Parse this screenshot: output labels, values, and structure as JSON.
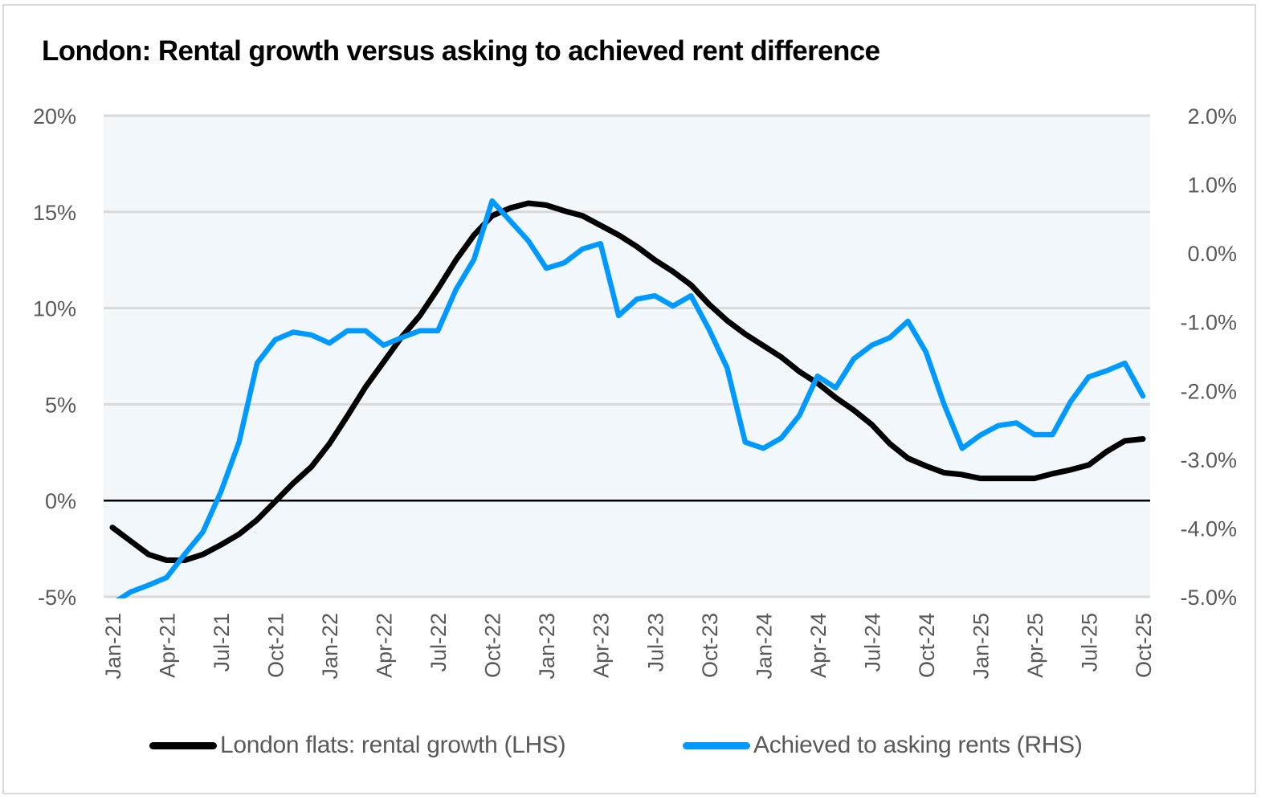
{
  "chart_data": {
    "type": "line",
    "title": "London: Rental growth versus asking to achieved rent difference",
    "xlabel": "",
    "ylabel_left": "",
    "ylabel_right": "",
    "x": [
      "Jan-21",
      "Feb-21",
      "Mar-21",
      "Apr-21",
      "May-21",
      "Jun-21",
      "Jul-21",
      "Aug-21",
      "Sep-21",
      "Oct-21",
      "Nov-21",
      "Dec-21",
      "Jan-22",
      "Feb-22",
      "Mar-22",
      "Apr-22",
      "May-22",
      "Jun-22",
      "Jul-22",
      "Aug-22",
      "Sep-22",
      "Oct-22",
      "Nov-22",
      "Dec-22",
      "Jan-23",
      "Feb-23",
      "Mar-23",
      "Apr-23",
      "May-23",
      "Jun-23",
      "Jul-23",
      "Aug-23",
      "Sep-23",
      "Oct-23",
      "Nov-23",
      "Dec-23",
      "Jan-24",
      "Feb-24",
      "Mar-24",
      "Apr-24",
      "May-24",
      "Jun-24",
      "Jul-24",
      "Aug-24",
      "Sep-24",
      "Oct-24",
      "Nov-24",
      "Dec-24",
      "Jan-25",
      "Feb-25",
      "Mar-25",
      "Apr-25",
      "May-25",
      "Jun-25",
      "Jul-25",
      "Aug-25",
      "Sep-25",
      "Oct-25"
    ],
    "x_tick_labels": [
      "Jan-21",
      "Apr-21",
      "Jul-21",
      "Oct-21",
      "Jan-22",
      "Apr-22",
      "Jul-22",
      "Oct-22",
      "Jan-23",
      "Apr-23",
      "Jul-23",
      "Oct-23",
      "Jan-24",
      "Apr-24",
      "Jul-24",
      "Oct-24",
      "Jan-25",
      "Apr-25",
      "Jul-25",
      "Oct-25"
    ],
    "y_left": {
      "range": [
        -5,
        20
      ],
      "ticks": [
        20,
        15,
        10,
        5,
        0,
        -5
      ],
      "tick_labels": [
        "20%",
        "15%",
        "10%",
        "5%",
        "0%",
        "-5%"
      ]
    },
    "y_right": {
      "range": [
        -5.0,
        2.0
      ],
      "ticks": [
        2,
        1,
        0,
        -1,
        -2,
        -3,
        -4,
        -5
      ],
      "tick_labels": [
        "2.0%",
        "1.0%",
        "0.0%",
        "-1.0%",
        "-2.0%",
        "-3.0%",
        "-4.0%",
        "-5.0%"
      ]
    },
    "grid": true,
    "zero_line": true,
    "legend_position": "bottom",
    "series": [
      {
        "name": "London flats: rental growth (LHS)",
        "axis": "left",
        "color": "#000000",
        "values": [
          -1.4,
          -2.1,
          -2.8,
          -3.1,
          -3.1,
          -2.8,
          -2.3,
          -1.75,
          -1.0,
          -0.05,
          0.9,
          1.75,
          2.95,
          4.4,
          5.9,
          7.2,
          8.5,
          9.6,
          11.0,
          12.5,
          13.8,
          14.8,
          15.2,
          15.45,
          15.35,
          15.05,
          14.8,
          14.3,
          13.8,
          13.2,
          12.5,
          11.9,
          11.2,
          10.2,
          9.35,
          8.65,
          8.05,
          7.45,
          6.7,
          6.1,
          5.35,
          4.7,
          3.95,
          2.95,
          2.2,
          1.8,
          1.45,
          1.35,
          1.15,
          1.15,
          1.15,
          1.15,
          1.4,
          1.6,
          1.85,
          2.55,
          3.1,
          3.2
        ]
      },
      {
        "name": "Achieved to asking rents (RHS)",
        "axis": "right",
        "color": "#0099ff",
        "values": [
          -5.1,
          -4.93,
          -4.83,
          -4.72,
          -4.38,
          -4.06,
          -3.47,
          -2.75,
          -1.6,
          -1.26,
          -1.15,
          -1.19,
          -1.31,
          -1.13,
          -1.13,
          -1.34,
          -1.23,
          -1.13,
          -1.13,
          -0.53,
          -0.09,
          0.76,
          0.47,
          0.18,
          -0.22,
          -0.14,
          0.06,
          0.14,
          -0.91,
          -0.67,
          -0.62,
          -0.77,
          -0.62,
          -1.11,
          -1.67,
          -2.75,
          -2.84,
          -2.69,
          -2.36,
          -1.79,
          -1.96,
          -1.54,
          -1.34,
          -1.23,
          -0.99,
          -1.44,
          -2.2,
          -2.84,
          -2.65,
          -2.51,
          -2.47,
          -2.64,
          -2.64,
          -2.16,
          -1.8,
          -1.71,
          -1.6,
          -2.08
        ]
      }
    ]
  },
  "colors": {
    "plot_background": "#f2f7fc",
    "gridline": "#d9d9d9",
    "axis_text": "#595959"
  }
}
